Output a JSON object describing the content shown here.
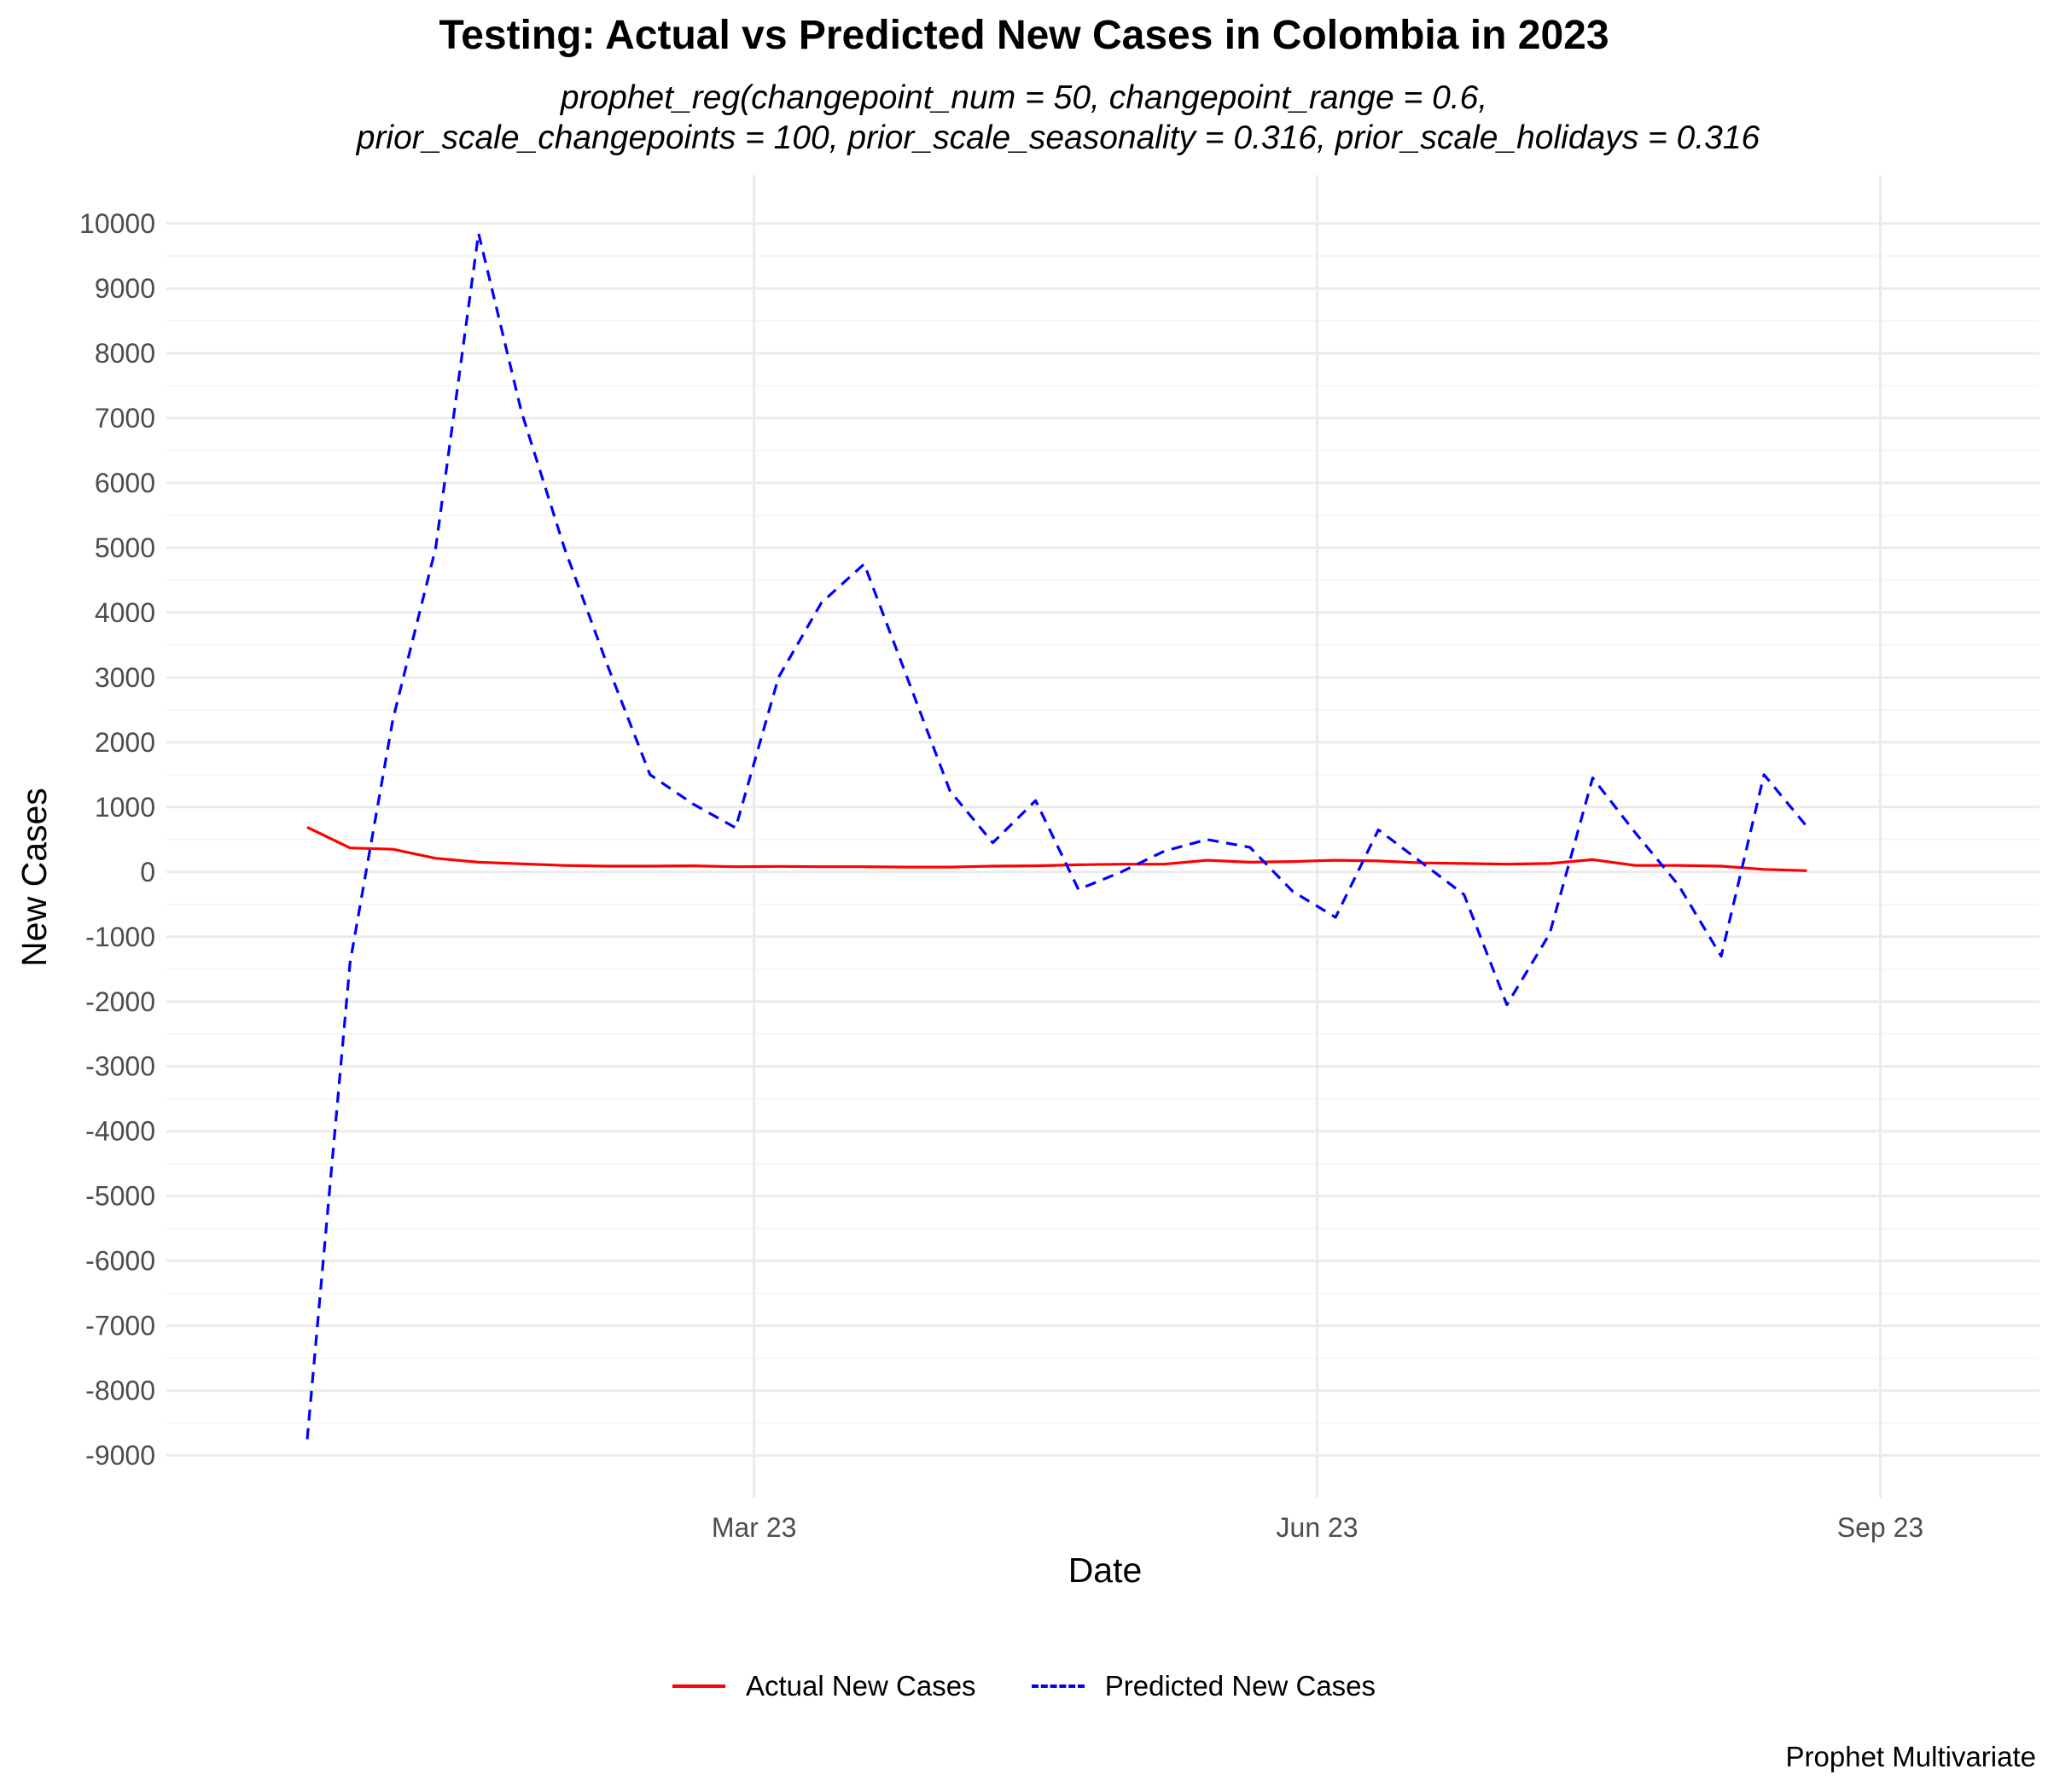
{
  "chart_data": {
    "type": "line",
    "title": "Testing: Actual vs Predicted New Cases in Colombia in 2023",
    "subtitle_lines": [
      "prophet_reg(changepoint_num = 50, changepoint_range = 0.6,",
      "prior_scale_changepoints = 100, prior_scale_seasonality = 0.316, prior_scale_holidays = 0.316"
    ],
    "xlabel": "Date",
    "ylabel": "New Cases",
    "caption": "Prophet Multivariate",
    "x_ticks": [
      {
        "label": "Mar 23",
        "date": "2023-03-01"
      },
      {
        "label": "Jun 23",
        "date": "2023-06-01"
      },
      {
        "label": "Sep 23",
        "date": "2023-09-01"
      }
    ],
    "y_ticks": [
      10000,
      9000,
      8000,
      7000,
      6000,
      5000,
      4000,
      3000,
      2000,
      1000,
      0,
      -1000,
      -2000,
      -3000,
      -4000,
      -5000,
      -6000,
      -7000,
      -8000,
      -9000
    ],
    "xlim": [
      "2022-11-25",
      "2023-09-27"
    ],
    "ylim": [
      -9650,
      10750
    ],
    "grid": true,
    "legend_position": "bottom",
    "dates": [
      "2022-12-18",
      "2022-12-25",
      "2023-01-01",
      "2023-01-08",
      "2023-01-15",
      "2023-01-22",
      "2023-01-29",
      "2023-02-05",
      "2023-02-12",
      "2023-02-19",
      "2023-02-26",
      "2023-03-05",
      "2023-03-12",
      "2023-03-19",
      "2023-03-26",
      "2023-04-02",
      "2023-04-09",
      "2023-04-16",
      "2023-04-23",
      "2023-04-30",
      "2023-05-07",
      "2023-05-14",
      "2023-05-21",
      "2023-05-28",
      "2023-06-04",
      "2023-06-11",
      "2023-06-18",
      "2023-06-25",
      "2023-07-02",
      "2023-07-09",
      "2023-07-16",
      "2023-07-23",
      "2023-07-30",
      "2023-08-06",
      "2023-08-13",
      "2023-08-20",
      "2023-08-27",
      "2023-09-03",
      "2023-09-10"
    ],
    "series": [
      {
        "name": "Actual New Cases",
        "color": "#ff0000",
        "dash": "solid",
        "values": [
          690,
          370,
          350,
          210,
          150,
          125,
          100,
          90,
          90,
          95,
          80,
          85,
          80,
          80,
          75,
          75,
          90,
          95,
          110,
          120,
          120,
          180,
          150,
          160,
          180,
          170,
          140,
          130,
          120,
          130,
          190,
          100,
          100,
          90,
          40,
          20,
          null,
          null,
          null
        ]
      },
      {
        "name": "Predicted New Cases",
        "color": "#0000ff",
        "dash": "dashed",
        "values": [
          -8750,
          -1400,
          2350,
          5000,
          9850,
          7100,
          5000,
          3200,
          1500,
          1050,
          680,
          3000,
          4150,
          4750,
          3000,
          1250,
          450,
          1100,
          -270,
          0,
          320,
          500,
          380,
          -300,
          -700,
          650,
          150,
          -350,
          -2050,
          -950,
          1450,
          600,
          -200,
          -1300,
          1500,
          700,
          null,
          null,
          null
        ]
      }
    ]
  }
}
